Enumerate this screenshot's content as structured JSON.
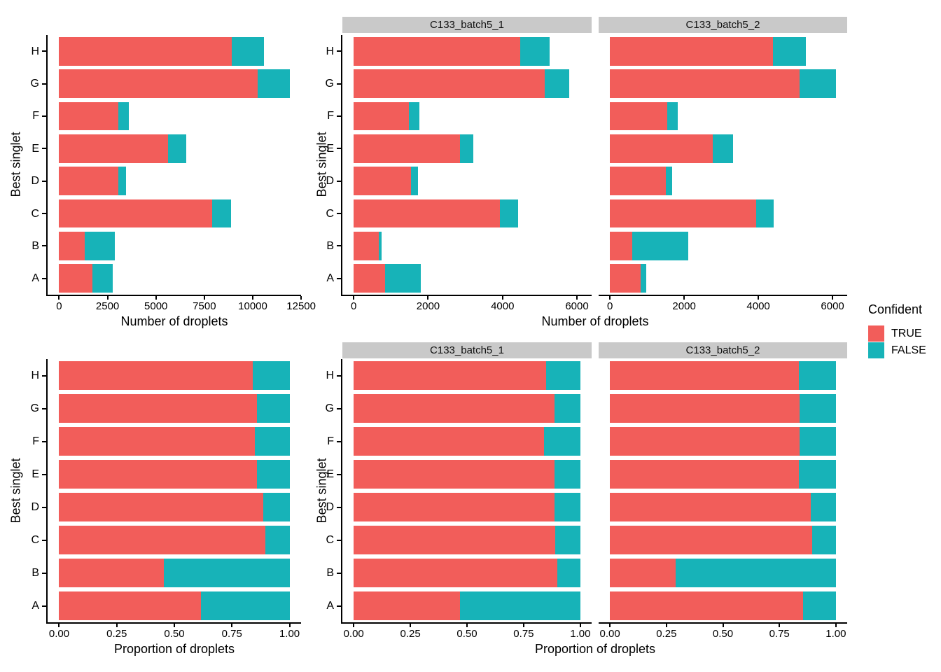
{
  "figure": {
    "background": "#ffffff",
    "description": "Stacked horizontal bar charts of droplet counts and proportions by best singlet, overall and faceted by capture (C133_batch5_1, C133_batch5_2), colored by confidence"
  },
  "colors": {
    "true_fill": "#F25D5A",
    "false_fill": "#17B3B8",
    "strip_bg": "#C9C9C9",
    "axis": "#000000",
    "text": "#000000"
  },
  "legend": {
    "title": "Confident",
    "items": [
      {
        "label": "TRUE",
        "color": "#F25D5A"
      },
      {
        "label": "FALSE",
        "color": "#17B3B8"
      }
    ]
  },
  "chart_data": [
    {
      "id": "counts-combined",
      "type": "bar",
      "orientation": "horizontal",
      "stacked": true,
      "facet": null,
      "xlabel": "Number of droplets",
      "ylabel": "Best singlet",
      "categories": [
        "A",
        "B",
        "C",
        "D",
        "E",
        "F",
        "G",
        "H"
      ],
      "series": [
        {
          "name": "TRUE",
          "values": [
            1710,
            1310,
            7920,
            3050,
            5640,
            3040,
            10270,
            8900
          ]
        },
        {
          "name": "FALSE",
          "values": [
            1060,
            1560,
            945,
            400,
            925,
            545,
            1630,
            1670
          ]
        }
      ],
      "xmax": 11900,
      "xticks": {
        "values": [
          0,
          2500,
          5000,
          7500,
          10000,
          12500
        ],
        "labels": [
          "0",
          "2500",
          "5000",
          "7500",
          "10000",
          "12500"
        ]
      }
    },
    {
      "id": "counts-batch1",
      "type": "bar",
      "orientation": "horizontal",
      "stacked": true,
      "facet": "C133_batch5_1",
      "xlabel": "Number of droplets",
      "ylabel": "Best singlet",
      "categories": [
        "A",
        "B",
        "C",
        "D",
        "E",
        "F",
        "G",
        "H"
      ],
      "series": [
        {
          "name": "TRUE",
          "values": [
            845,
            675,
            3925,
            1540,
            2855,
            1490,
            5130,
            4480
          ]
        },
        {
          "name": "FALSE",
          "values": [
            950,
            75,
            490,
            190,
            365,
            280,
            665,
            790
          ]
        }
      ],
      "xmax": 6090,
      "xticks": {
        "values": [
          0,
          2000,
          4000,
          6000
        ],
        "labels": [
          "0",
          "2000",
          "4000",
          "6000"
        ]
      }
    },
    {
      "id": "counts-batch2",
      "type": "bar",
      "orientation": "horizontal",
      "stacked": true,
      "facet": "C133_batch5_2",
      "xlabel": "Number of droplets",
      "ylabel": "Best singlet",
      "categories": [
        "A",
        "B",
        "C",
        "D",
        "E",
        "F",
        "G",
        "H"
      ],
      "series": [
        {
          "name": "TRUE",
          "values": [
            830,
            610,
            3950,
            1500,
            2770,
            1540,
            5110,
            4400
          ]
        },
        {
          "name": "FALSE",
          "values": [
            140,
            1510,
            460,
            180,
            545,
            290,
            980,
            885
          ]
        }
      ],
      "xmax": 6090,
      "xticks": {
        "values": [
          0,
          2000,
          4000,
          6000
        ],
        "labels": [
          "0",
          "2000",
          "4000",
          "6000"
        ]
      }
    },
    {
      "id": "prop-combined",
      "type": "bar",
      "orientation": "horizontal",
      "stacked": true,
      "facet": null,
      "xlabel": "Proportion of droplets",
      "ylabel": "Best singlet",
      "categories": [
        "A",
        "B",
        "C",
        "D",
        "E",
        "F",
        "G",
        "H"
      ],
      "series": [
        {
          "name": "TRUE",
          "values": [
            0.615,
            0.455,
            0.895,
            0.885,
            0.86,
            0.85,
            0.86,
            0.84
          ]
        },
        {
          "name": "FALSE",
          "values": [
            0.385,
            0.545,
            0.105,
            0.115,
            0.14,
            0.15,
            0.14,
            0.16
          ]
        }
      ],
      "xmax": 1,
      "xticks": {
        "values": [
          0,
          0.25,
          0.5,
          0.75,
          1
        ],
        "labels": [
          "0.00",
          "0.25",
          "0.50",
          "0.75",
          "1.00"
        ]
      }
    },
    {
      "id": "prop-batch1",
      "type": "bar",
      "orientation": "horizontal",
      "stacked": true,
      "facet": "C133_batch5_1",
      "xlabel": "Proportion of droplets",
      "ylabel": "Best singlet",
      "categories": [
        "A",
        "B",
        "C",
        "D",
        "E",
        "F",
        "G",
        "H"
      ],
      "series": [
        {
          "name": "TRUE",
          "values": [
            0.47,
            0.9,
            0.89,
            0.885,
            0.885,
            0.84,
            0.885,
            0.85
          ]
        },
        {
          "name": "FALSE",
          "values": [
            0.53,
            0.1,
            0.11,
            0.115,
            0.115,
            0.16,
            0.115,
            0.15
          ]
        }
      ],
      "xmax": 1,
      "xticks": {
        "values": [
          0,
          0.25,
          0.5,
          0.75,
          1
        ],
        "labels": [
          "0.00",
          "0.25",
          "0.50",
          "0.75",
          "1.00"
        ]
      }
    },
    {
      "id": "prop-batch2",
      "type": "bar",
      "orientation": "horizontal",
      "stacked": true,
      "facet": "C133_batch5_2",
      "xlabel": "Proportion of droplets",
      "ylabel": "Best singlet",
      "categories": [
        "A",
        "B",
        "C",
        "D",
        "E",
        "F",
        "G",
        "H"
      ],
      "series": [
        {
          "name": "TRUE",
          "values": [
            0.855,
            0.29,
            0.895,
            0.89,
            0.835,
            0.84,
            0.84,
            0.835
          ]
        },
        {
          "name": "FALSE",
          "values": [
            0.145,
            0.71,
            0.105,
            0.11,
            0.165,
            0.16,
            0.16,
            0.165
          ]
        }
      ],
      "xmax": 1,
      "xticks": {
        "values": [
          0,
          0.25,
          0.5,
          0.75,
          1
        ],
        "labels": [
          "0.00",
          "0.25",
          "0.50",
          "0.75",
          "1.00"
        ]
      }
    }
  ]
}
